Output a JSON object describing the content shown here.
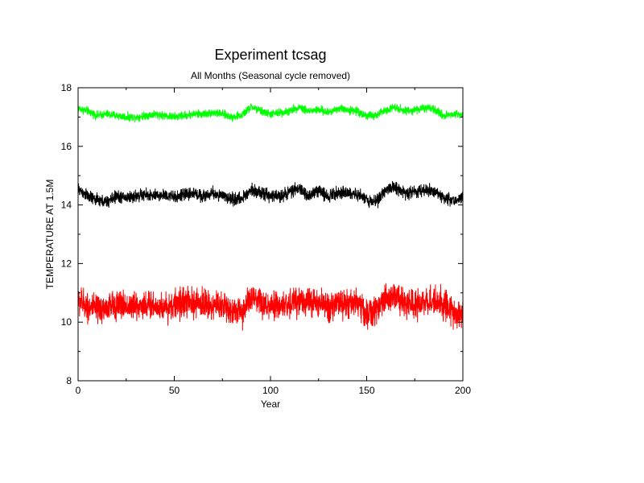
{
  "chart_data": {
    "type": "line",
    "title": "Experiment tcsag",
    "subtitle": "All Months (Seasonal cycle removed)",
    "xlabel": "Year",
    "ylabel": "TEMPERATURE AT 1.5M",
    "xlim": [
      0,
      200
    ],
    "ylim": [
      8,
      18
    ],
    "x_ticks": [
      0,
      50,
      100,
      150,
      200
    ],
    "x_ticks_labeled": [
      "0",
      "50",
      "100",
      "150",
      "200"
    ],
    "x_minor_ticks": [
      25,
      75,
      125,
      175
    ],
    "y_ticks": [
      8,
      10,
      12,
      14,
      16,
      18
    ],
    "y_ticks_labeled": [
      "8",
      "10",
      "12",
      "14",
      "16",
      "18"
    ],
    "y_minor_ticks": [
      9,
      11,
      13,
      15,
      17
    ],
    "grid": false,
    "series": [
      {
        "color": "#00ff00",
        "x": [
          0,
          5,
          10,
          15,
          20,
          25,
          30,
          35,
          40,
          45,
          50,
          55,
          60,
          65,
          70,
          75,
          80,
          85,
          90,
          95,
          100,
          105,
          110,
          115,
          120,
          125,
          130,
          135,
          140,
          145,
          150,
          155,
          160,
          165,
          170,
          175,
          180,
          185,
          190,
          195,
          200
        ],
        "values": [
          17.3,
          17.2,
          17.05,
          17.1,
          17.05,
          17.0,
          17.0,
          17.05,
          17.1,
          17.05,
          17.0,
          17.05,
          17.1,
          17.1,
          17.15,
          17.1,
          17.0,
          17.05,
          17.35,
          17.2,
          17.1,
          17.15,
          17.2,
          17.35,
          17.2,
          17.25,
          17.15,
          17.3,
          17.25,
          17.2,
          17.05,
          17.05,
          17.25,
          17.35,
          17.2,
          17.25,
          17.3,
          17.25,
          17.05,
          17.1,
          17.1
        ],
        "amplitude": 0.1
      },
      {
        "color": "#000000",
        "x": [
          0,
          5,
          10,
          15,
          20,
          25,
          30,
          35,
          40,
          45,
          50,
          55,
          60,
          65,
          70,
          75,
          80,
          85,
          90,
          95,
          100,
          105,
          110,
          115,
          120,
          125,
          130,
          135,
          140,
          145,
          150,
          155,
          160,
          165,
          170,
          175,
          180,
          185,
          190,
          195,
          200
        ],
        "values": [
          14.55,
          14.3,
          14.15,
          14.1,
          14.3,
          14.25,
          14.3,
          14.35,
          14.3,
          14.35,
          14.25,
          14.35,
          14.4,
          14.3,
          14.4,
          14.3,
          14.2,
          14.2,
          14.55,
          14.4,
          14.3,
          14.3,
          14.45,
          14.55,
          14.3,
          14.5,
          14.3,
          14.45,
          14.4,
          14.35,
          14.2,
          14.1,
          14.55,
          14.6,
          14.4,
          14.45,
          14.5,
          14.5,
          14.25,
          14.15,
          14.25
        ],
        "amplitude": 0.15
      },
      {
        "color": "#ff0000",
        "x": [
          0,
          5,
          10,
          15,
          20,
          25,
          30,
          35,
          40,
          45,
          50,
          55,
          60,
          65,
          70,
          75,
          80,
          85,
          90,
          95,
          100,
          105,
          110,
          115,
          120,
          125,
          130,
          135,
          140,
          145,
          150,
          155,
          160,
          165,
          170,
          175,
          180,
          185,
          190,
          195,
          200
        ],
        "values": [
          10.75,
          10.55,
          10.4,
          10.5,
          10.6,
          10.55,
          10.55,
          10.6,
          10.55,
          10.5,
          10.6,
          10.7,
          10.6,
          10.65,
          10.55,
          10.6,
          10.4,
          10.35,
          10.8,
          10.6,
          10.5,
          10.55,
          10.6,
          10.8,
          10.7,
          10.6,
          10.55,
          10.6,
          10.65,
          10.7,
          10.25,
          10.4,
          10.85,
          10.95,
          10.6,
          10.55,
          10.7,
          10.75,
          10.6,
          10.3,
          10.3
        ],
        "amplitude": 0.35
      }
    ]
  }
}
